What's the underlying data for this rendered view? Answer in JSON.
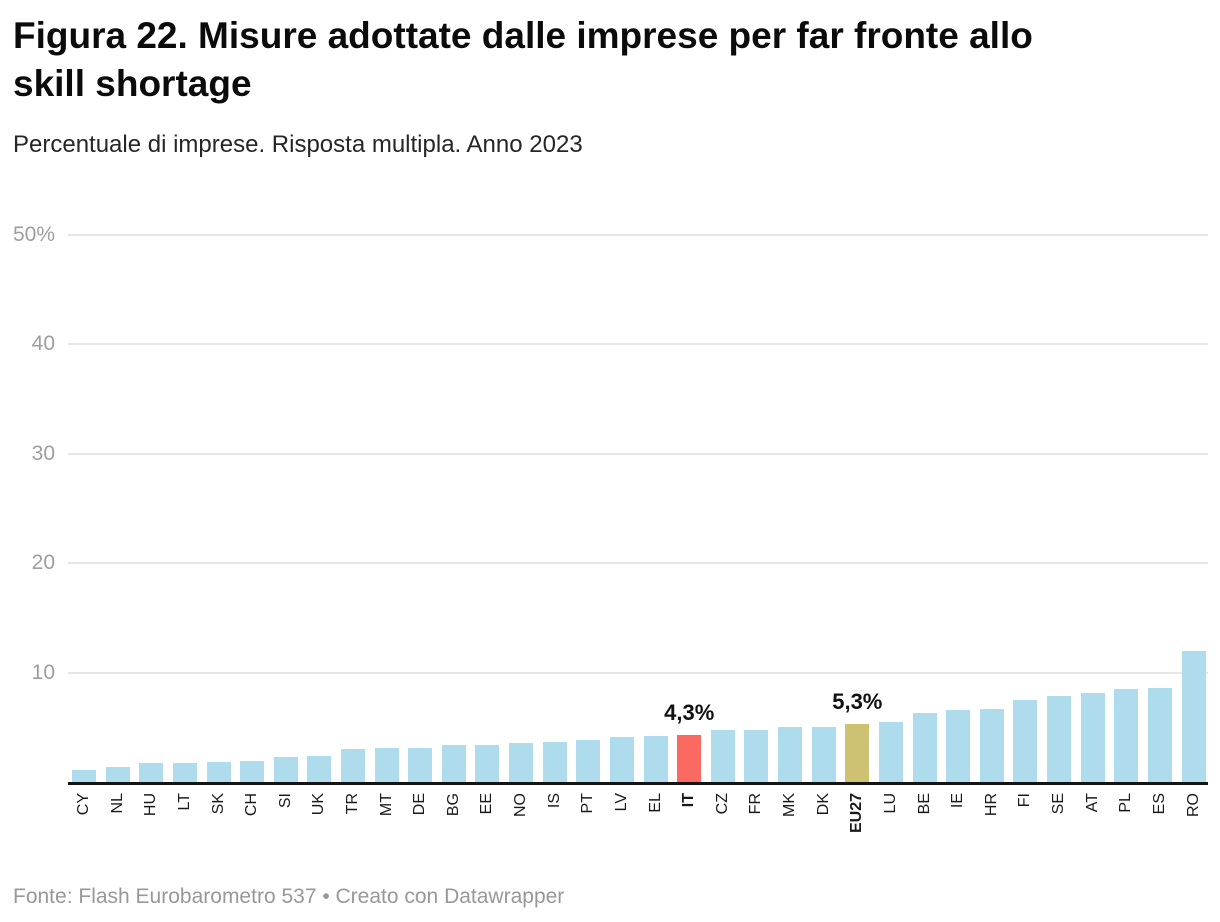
{
  "header": {
    "title_lines": [
      "Figura 22. Misure adottate dalle imprese per far fronte allo",
      "skill shortage"
    ],
    "subtitle": "Percentuale di imprese. Risposta multipla. Anno 2023"
  },
  "footer": {
    "text": "Fonte: Flash Eurobarometro 537 • Creato con Datawrapper"
  },
  "colors": {
    "bar_default": "#aedcec",
    "bar_highlight_it": "#fb6a60",
    "bar_highlight_eu": "#ccc272",
    "axis_line": "#141414",
    "gridline": "#e6e6e6",
    "tick_label": "#9e9e9e"
  },
  "chart_data": {
    "type": "bar",
    "title": "Figura 22. Misure adottate dalle imprese per far fronte allo skill shortage",
    "subtitle": "Percentuale di imprese. Risposta multipla. Anno 2023",
    "source": "Fonte: Flash Eurobarometro 537",
    "unit": "%",
    "categories": [
      "CY",
      "NL",
      "HU",
      "LT",
      "SK",
      "CH",
      "SI",
      "UK",
      "TR",
      "MT",
      "DE",
      "BG",
      "EE",
      "NO",
      "IS",
      "PT",
      "LV",
      "EL",
      "IT",
      "CZ",
      "FR",
      "MK",
      "DK",
      "EU27",
      "LU",
      "BE",
      "IE",
      "HR",
      "FI",
      "SE",
      "AT",
      "PL",
      "ES",
      "RO"
    ],
    "values": [
      1.1,
      1.4,
      1.7,
      1.7,
      1.8,
      1.9,
      2.3,
      2.4,
      3.0,
      3.1,
      3.1,
      3.4,
      3.4,
      3.6,
      3.7,
      3.8,
      4.1,
      4.2,
      4.3,
      4.8,
      4.8,
      5.0,
      5.0,
      5.3,
      5.5,
      6.3,
      6.6,
      6.7,
      7.5,
      7.9,
      8.1,
      8.5,
      8.6,
      12.0
    ],
    "highlighted": {
      "IT": {
        "color_key": "bar_highlight_it",
        "data_label": "4,3%"
      },
      "EU27": {
        "color_key": "bar_highlight_eu",
        "data_label": "5,3%"
      }
    },
    "bold_categories": [
      "IT",
      "EU27"
    ],
    "y_ticks": [
      {
        "value": 50,
        "label": "50%"
      },
      {
        "value": 40,
        "label": "40"
      },
      {
        "value": 30,
        "label": "30"
      },
      {
        "value": 20,
        "label": "20"
      },
      {
        "value": 10,
        "label": "10"
      }
    ],
    "ylim": [
      0,
      54
    ],
    "grid": "horizontal",
    "legend": "none",
    "xlabel": "",
    "ylabel": ""
  }
}
